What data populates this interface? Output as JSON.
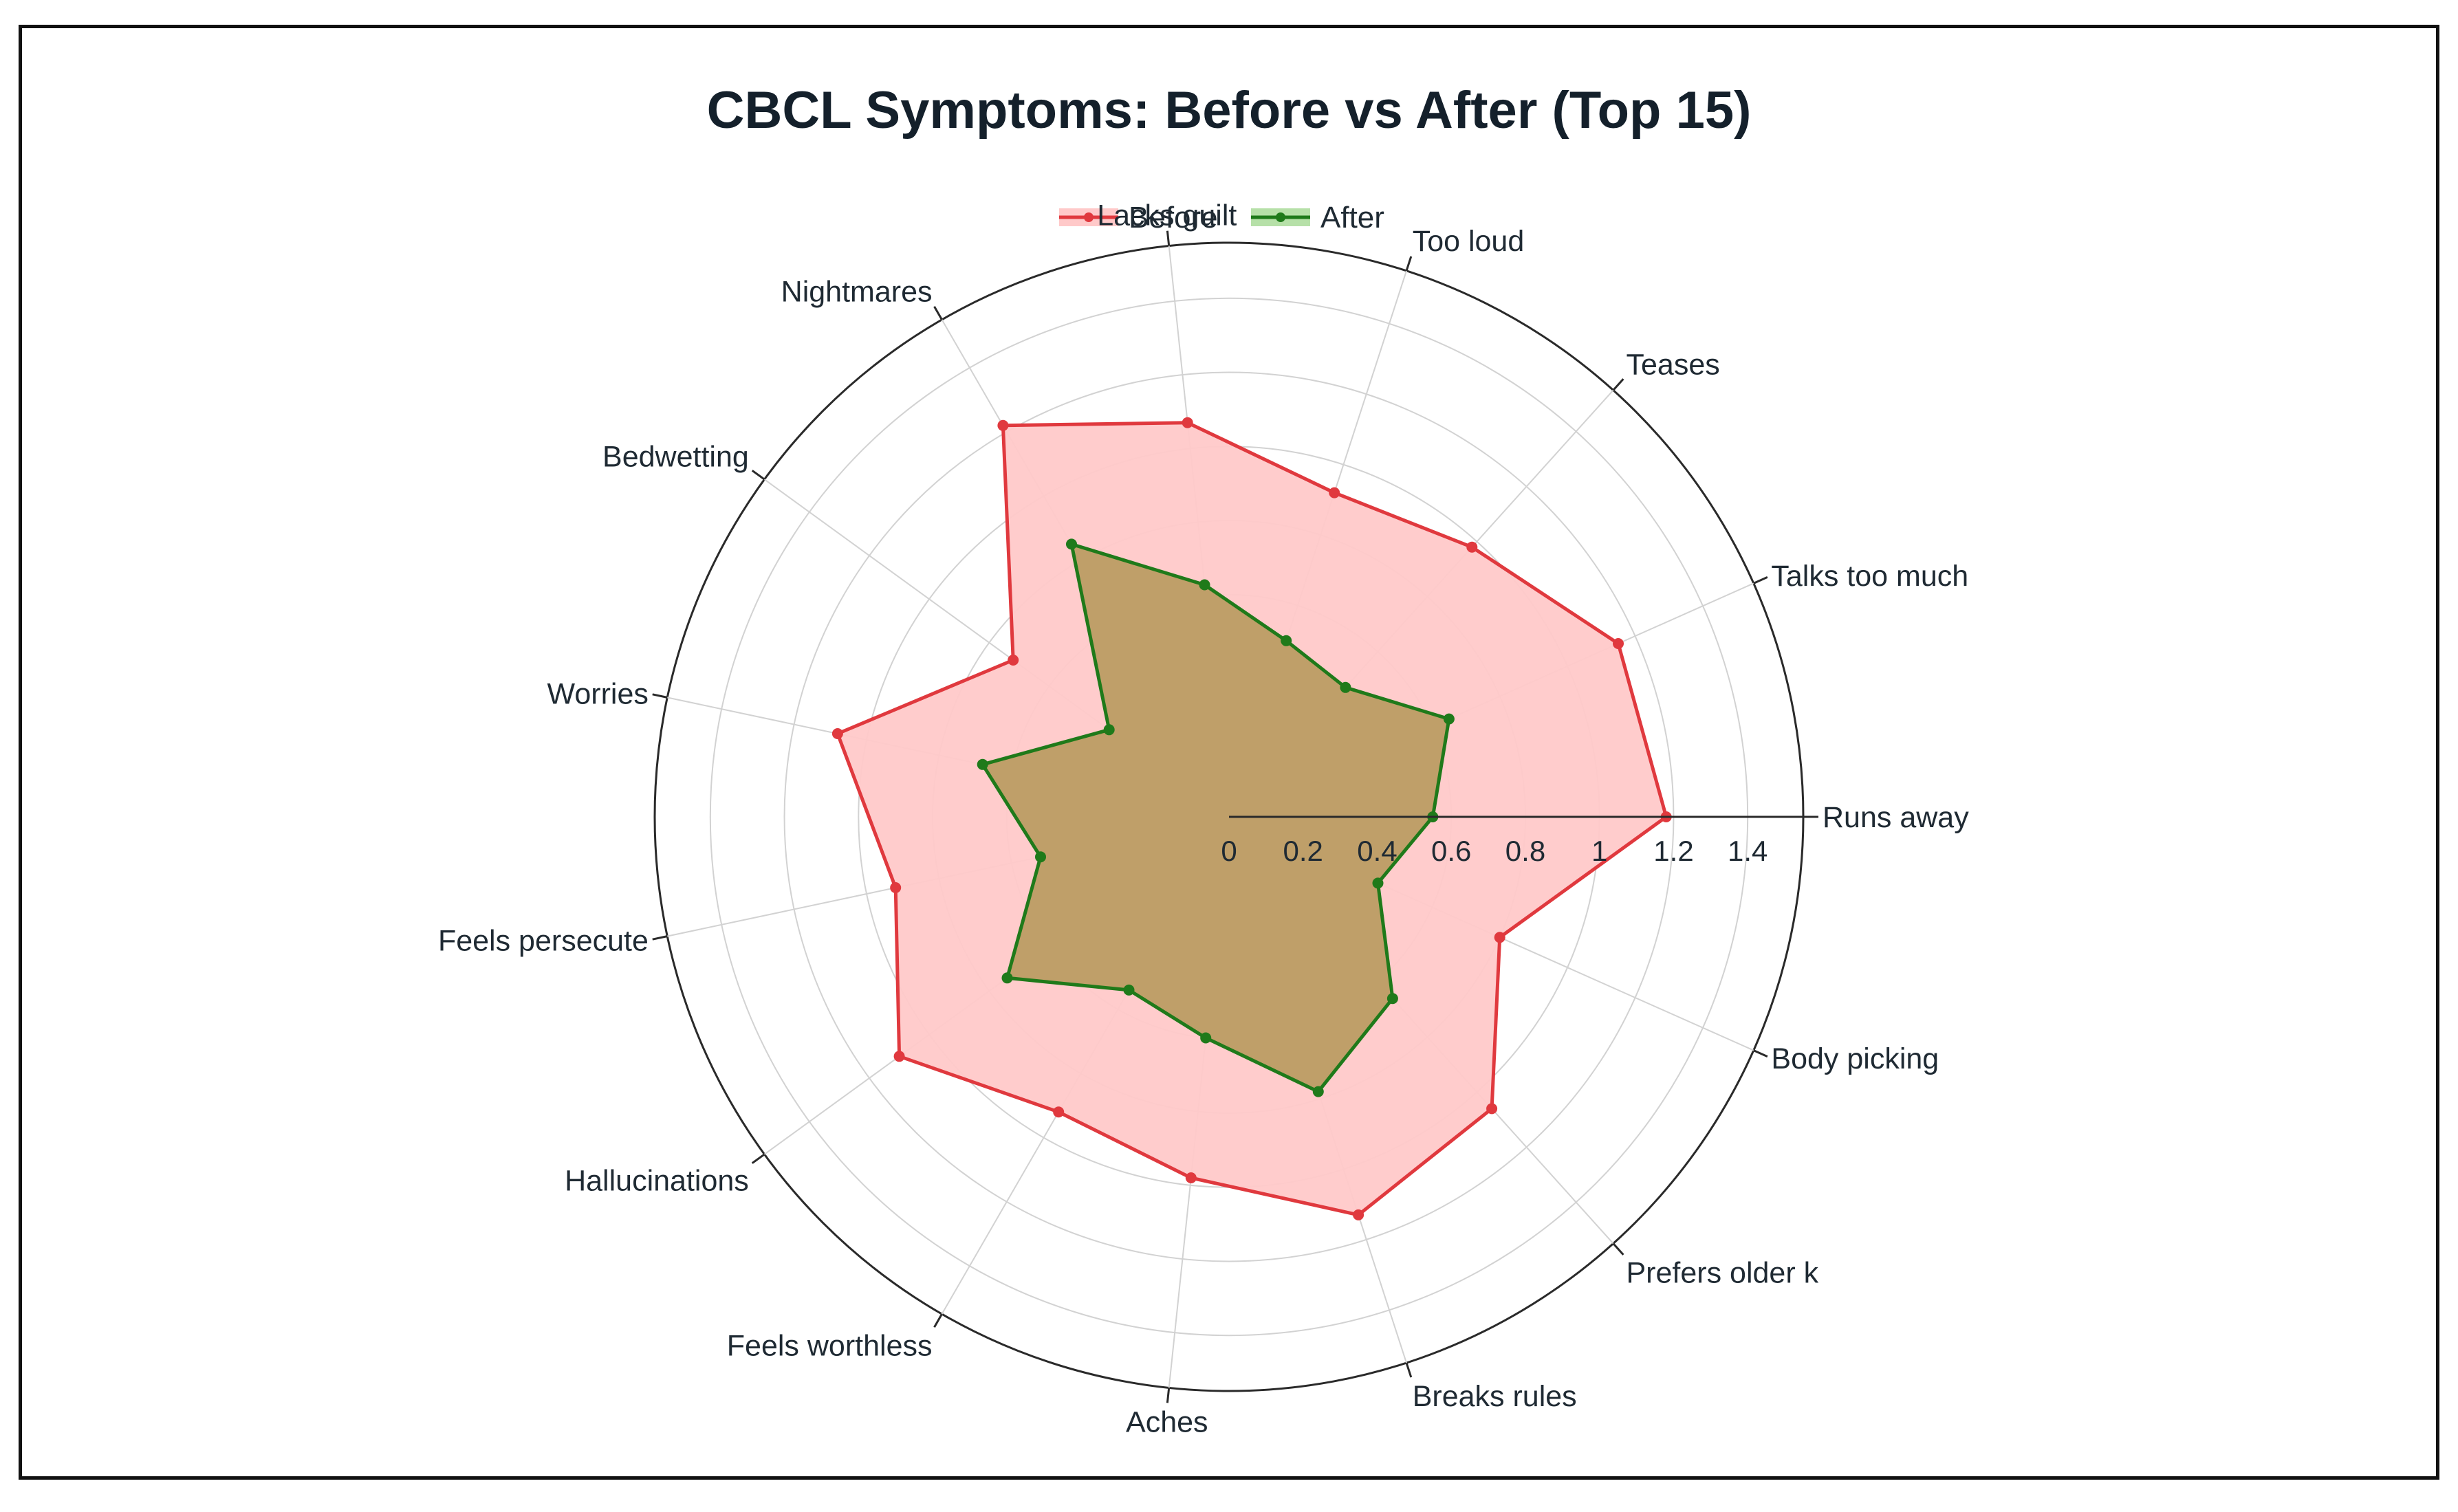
{
  "chart_data": {
    "type": "radar",
    "title": "CBCL Symptoms: Before vs After (Top 15)",
    "categories": [
      "Runs away",
      "Talks too much",
      "Teases",
      "Too loud",
      "Lacks guilt",
      "Nightmares",
      "Bedwetting",
      "Worries",
      "Feels persecute",
      "Hallucinations",
      "Feels worthless",
      "Aches",
      "Breaks rules",
      "Prefers older k",
      "Body picking"
    ],
    "series": [
      {
        "name": "Before",
        "color": "#e0393e",
        "fill": "#ffc9c9",
        "values": [
          1.18,
          1.15,
          0.98,
          0.92,
          1.07,
          1.22,
          0.72,
          1.08,
          0.92,
          1.1,
          0.92,
          0.98,
          1.13,
          1.06,
          0.8
        ]
      },
      {
        "name": "After",
        "color": "#1f7a1a",
        "fill": "#b89a5e",
        "values": [
          0.55,
          0.65,
          0.47,
          0.5,
          0.63,
          0.85,
          0.4,
          0.68,
          0.52,
          0.74,
          0.54,
          0.6,
          0.78,
          0.66,
          0.44
        ]
      }
    ],
    "r_ticks": [
      0,
      0.2,
      0.4,
      0.6,
      0.8,
      1,
      1.2,
      1.4
    ],
    "r_tick_labels": [
      "0",
      "0.2",
      "0.4",
      "0.6",
      "0.8",
      "1",
      "1.2",
      "1.4"
    ],
    "rlim": [
      0,
      1.55
    ],
    "legend_position": "top-center"
  }
}
